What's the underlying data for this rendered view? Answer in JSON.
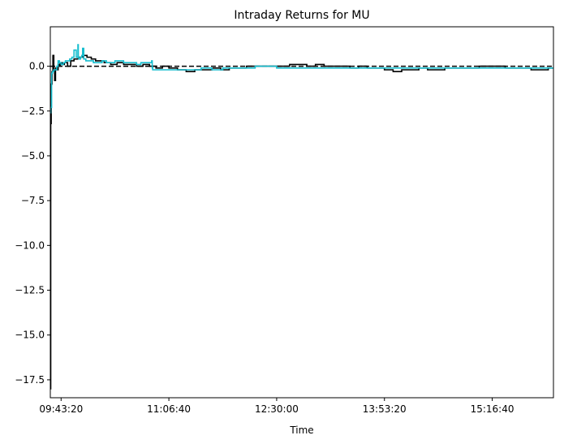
{
  "chart_data": {
    "type": "line",
    "title": "Intraday Returns for MU",
    "xlabel": "Time",
    "ylabel": "",
    "x_unit": "seconds since midnight",
    "xlim": [
      34500,
      57840
    ],
    "ylim": [
      -18.5,
      2.2
    ],
    "x_ticks": [
      {
        "value": 35000,
        "label": "09:43:20"
      },
      {
        "value": 40000,
        "label": "11:06:40"
      },
      {
        "value": 45000,
        "label": "12:30:00"
      },
      {
        "value": 50000,
        "label": "13:53:20"
      },
      {
        "value": 55000,
        "label": "15:16:40"
      }
    ],
    "y_ticks": [
      {
        "value": 0.0,
        "label": "0.0"
      },
      {
        "value": -2.5,
        "label": "−2.5"
      },
      {
        "value": -5.0,
        "label": "−5.0"
      },
      {
        "value": -7.5,
        "label": "−7.5"
      },
      {
        "value": -10.0,
        "label": "−10.0"
      },
      {
        "value": -12.5,
        "label": "−12.5"
      },
      {
        "value": -15.0,
        "label": "−15.0"
      },
      {
        "value": -17.5,
        "label": "−17.5"
      }
    ],
    "grid": false,
    "legend": "none",
    "reference_line": {
      "y": 0,
      "style": "dashed",
      "color": "#000000"
    },
    "series": [
      {
        "color": "#000000",
        "x": [
          34500,
          34520,
          34540,
          34580,
          34620,
          34660,
          34700,
          34740,
          34800,
          34860,
          34900,
          34960,
          35050,
          35150,
          35300,
          35450,
          35600,
          35800,
          36000,
          36200,
          36400,
          36600,
          36800,
          37000,
          37300,
          37600,
          37900,
          38200,
          38500,
          38800,
          39100,
          39400,
          39700,
          40000,
          40400,
          40800,
          41200,
          41600,
          42000,
          42400,
          42800,
          43200,
          43600,
          44000,
          44400,
          44800,
          45200,
          45600,
          46000,
          46400,
          46800,
          47200,
          47600,
          48000,
          48400,
          48800,
          49200,
          49600,
          50000,
          50400,
          50800,
          51200,
          51600,
          52000,
          52400,
          52800,
          53200,
          53600,
          54000,
          54400,
          54800,
          55200,
          55600,
          56000,
          56400,
          56800,
          57200,
          57600,
          57840
        ],
        "y": [
          -18.0,
          -3.2,
          -1.0,
          -0.3,
          0.6,
          -0.2,
          -0.8,
          -0.1,
          -0.2,
          0.1,
          0.0,
          0.2,
          0.1,
          0.2,
          0.0,
          0.3,
          0.4,
          0.5,
          0.6,
          0.5,
          0.4,
          0.3,
          0.3,
          0.2,
          0.1,
          0.2,
          0.1,
          0.1,
          0.0,
          0.1,
          0.0,
          -0.1,
          0.0,
          -0.1,
          -0.2,
          -0.3,
          -0.2,
          -0.2,
          -0.1,
          -0.2,
          -0.1,
          -0.1,
          0.0,
          0.0,
          0.0,
          0.0,
          0.0,
          0.1,
          0.1,
          0.0,
          0.1,
          0.0,
          0.0,
          0.0,
          -0.1,
          0.0,
          -0.1,
          -0.1,
          -0.2,
          -0.3,
          -0.2,
          -0.2,
          -0.1,
          -0.2,
          -0.2,
          -0.1,
          -0.1,
          -0.1,
          -0.1,
          0.0,
          0.0,
          0.0,
          -0.1,
          -0.1,
          -0.1,
          -0.2,
          -0.2,
          -0.1,
          -0.1
        ]
      },
      {
        "color": "#17BECF",
        "x": [
          34500,
          34520,
          34560,
          34600,
          34660,
          34720,
          34800,
          34860,
          34920,
          35000,
          35100,
          35200,
          35300,
          35400,
          35500,
          35600,
          35700,
          35780,
          35800,
          35820,
          35900,
          35960,
          36000,
          36050,
          36150,
          36300,
          36500,
          36700,
          36900,
          37100,
          37300,
          37500,
          37700,
          37900,
          38100,
          38300,
          38500,
          38700,
          38900,
          39000,
          39150,
          39200,
          39230,
          39250,
          39300,
          39500,
          40000,
          40500,
          41000,
          41500,
          42000,
          42500,
          43000,
          43500,
          44000,
          44500,
          45000,
          45500,
          46000,
          46500,
          47000,
          47500,
          48000,
          48500,
          49000,
          49500,
          50000,
          50500,
          51000,
          51500,
          52000,
          52500,
          53000,
          53500,
          54000,
          54500,
          55000,
          55500,
          56000,
          56500,
          57000,
          57500,
          57840
        ],
        "y": [
          -2.6,
          -2.3,
          -0.4,
          -0.3,
          -0.2,
          -0.2,
          0.0,
          0.3,
          0.2,
          0.1,
          0.2,
          0.3,
          0.3,
          0.4,
          0.5,
          0.9,
          0.5,
          1.2,
          0.5,
          0.4,
          0.5,
          0.6,
          1.0,
          0.4,
          0.3,
          0.3,
          0.2,
          0.2,
          0.3,
          0.2,
          0.2,
          0.3,
          0.3,
          0.2,
          0.2,
          0.2,
          0.1,
          0.2,
          0.2,
          0.2,
          0.2,
          0.3,
          -0.1,
          -0.2,
          -0.2,
          -0.2,
          -0.2,
          -0.2,
          -0.2,
          -0.1,
          -0.2,
          -0.1,
          -0.1,
          -0.1,
          0.0,
          0.0,
          -0.1,
          -0.1,
          -0.1,
          -0.1,
          -0.1,
          -0.1,
          -0.1,
          -0.1,
          -0.1,
          -0.1,
          -0.1,
          -0.1,
          -0.1,
          -0.1,
          -0.1,
          -0.1,
          -0.1,
          -0.1,
          -0.1,
          -0.1,
          -0.1,
          -0.1,
          -0.1,
          -0.1,
          -0.1,
          -0.1,
          -0.1
        ]
      }
    ]
  }
}
